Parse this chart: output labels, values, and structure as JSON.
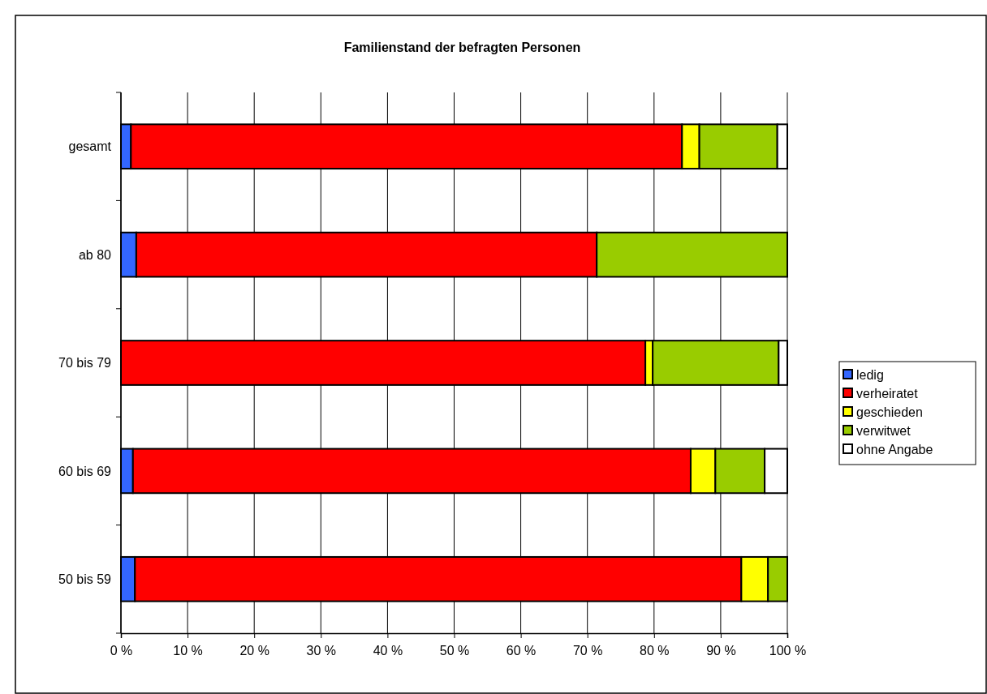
{
  "chart_data": {
    "type": "bar",
    "orientation": "horizontal",
    "stacked": true,
    "title": "Familienstand der befragten Personen",
    "categories": [
      "gesamt",
      "ab 80",
      "70 bis 79",
      "60 bis 69",
      "50 bis 59"
    ],
    "series": [
      {
        "name": "ledig",
        "color": "#3366ff",
        "values": [
          1.5,
          2.3,
          null,
          1.8,
          2.1
        ]
      },
      {
        "name": "verheiratet",
        "color": "#ff0000",
        "values": [
          82.7,
          69.1,
          78.7,
          83.7,
          91.0
        ]
      },
      {
        "name": "geschieden",
        "color": "#ffff00",
        "values": [
          2.6,
          null,
          1.1,
          3.7,
          4.0
        ]
      },
      {
        "name": "verwitwet",
        "color": "#99cc00",
        "values": [
          11.7,
          28.6,
          18.9,
          7.4,
          2.9
        ]
      },
      {
        "name": "ohne Angabe",
        "color": "#ffffff",
        "values": [
          1.5,
          null,
          1.3,
          3.4,
          null
        ]
      }
    ],
    "xlim": [
      0,
      100
    ],
    "xticks": [
      {
        "value": 0,
        "label": "0 %"
      },
      {
        "value": 10,
        "label": "10 %"
      },
      {
        "value": 20,
        "label": "20 %"
      },
      {
        "value": 30,
        "label": "30 %"
      },
      {
        "value": 40,
        "label": "40 %"
      },
      {
        "value": 50,
        "label": "50 %"
      },
      {
        "value": 60,
        "label": "60 %"
      },
      {
        "value": 70,
        "label": "70 %"
      },
      {
        "value": 80,
        "label": "80 %"
      },
      {
        "value": 90,
        "label": "90 %"
      },
      {
        "value": 100,
        "label": "100 %"
      }
    ],
    "grid": "x",
    "legend": "right"
  }
}
